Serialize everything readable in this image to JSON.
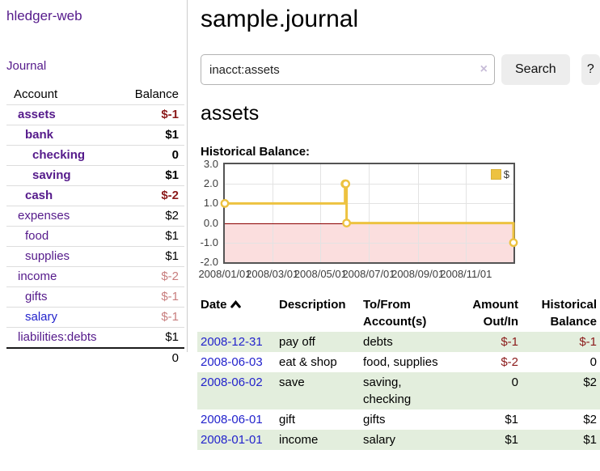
{
  "app": {
    "title": "hledger-web"
  },
  "nav": {
    "journal": "Journal"
  },
  "sidebar": {
    "col_account": "Account",
    "col_balance": "Balance",
    "accounts": [
      {
        "name": "assets",
        "balance": "$-1"
      },
      {
        "name": "bank",
        "balance": "$1"
      },
      {
        "name": "checking",
        "balance": "0"
      },
      {
        "name": "saving",
        "balance": "$1"
      },
      {
        "name": "cash",
        "balance": "$-2"
      },
      {
        "name": "expenses",
        "balance": "$2"
      },
      {
        "name": "food",
        "balance": "$1"
      },
      {
        "name": "supplies",
        "balance": "$1"
      },
      {
        "name": "income",
        "balance": "$-2"
      },
      {
        "name": "gifts",
        "balance": "$-1"
      },
      {
        "name": "salary",
        "balance": "$-1"
      },
      {
        "name": "liabilities:debts",
        "balance": "$1"
      }
    ],
    "total": "0"
  },
  "header": {
    "title": "sample.journal"
  },
  "search": {
    "value": "inacct:assets",
    "clear_icon": "×",
    "button_label": "Search",
    "help_label": "?"
  },
  "account_page": {
    "heading": "assets",
    "chart_title": "Historical Balance:"
  },
  "chart_data": {
    "type": "line",
    "step": true,
    "xlim": [
      "2008-01-01",
      "2008-12-31"
    ],
    "ylim": [
      -2,
      3
    ],
    "y_ticks": [
      3.0,
      2.0,
      1.0,
      0.0,
      -1.0,
      -2.0
    ],
    "x_ticks": [
      "2008/01/01",
      "2008/03/01",
      "2008/05/01",
      "2008/07/01",
      "2008/09/01",
      "2008/11/01"
    ],
    "series": [
      {
        "name": "$",
        "color": "#edc240",
        "points": [
          [
            "2008-01-01",
            1
          ],
          [
            "2008-06-01",
            2
          ],
          [
            "2008-06-02",
            2
          ],
          [
            "2008-06-03",
            0
          ],
          [
            "2008-12-31",
            -1
          ]
        ]
      }
    ],
    "grid": true,
    "legend_position": "top-right",
    "zero_line_color": "#8b0000",
    "negative_region_color": "#fbdede"
  },
  "register": {
    "headers": {
      "date": "Date",
      "description": "Description",
      "accounts": "To/From Account(s)",
      "amount": "Amount Out/In",
      "balance": "Historical Balance"
    },
    "sort": "ascending",
    "rows": [
      {
        "date": "2008-12-31",
        "description": "pay off",
        "accounts": "debts",
        "amount": "$-1",
        "balance": "$-1"
      },
      {
        "date": "2008-06-03",
        "description": "eat & shop",
        "accounts": "food, supplies",
        "amount": "$-2",
        "balance": "0"
      },
      {
        "date": "2008-06-02",
        "description": "save",
        "accounts": "saving, checking",
        "amount": "0",
        "balance": "$2"
      },
      {
        "date": "2008-06-01",
        "description": "gift",
        "accounts": "gifts",
        "amount": "$1",
        "balance": "$2"
      },
      {
        "date": "2008-01-01",
        "description": "income",
        "accounts": "salary",
        "amount": "$1",
        "balance": "$1"
      }
    ]
  },
  "colors": {
    "link_visited_purple": "#551a8b",
    "link_blue": "#2323cc",
    "negative_strong": "#8b1a1a",
    "negative_dim": "#c87e7e",
    "row_stripe_green": "#e3eedd",
    "chart_gold": "#edc240",
    "chart_negative_pink": "#fbdede",
    "chart_zero_line": "#8b0000",
    "button_gray": "#ededed"
  }
}
